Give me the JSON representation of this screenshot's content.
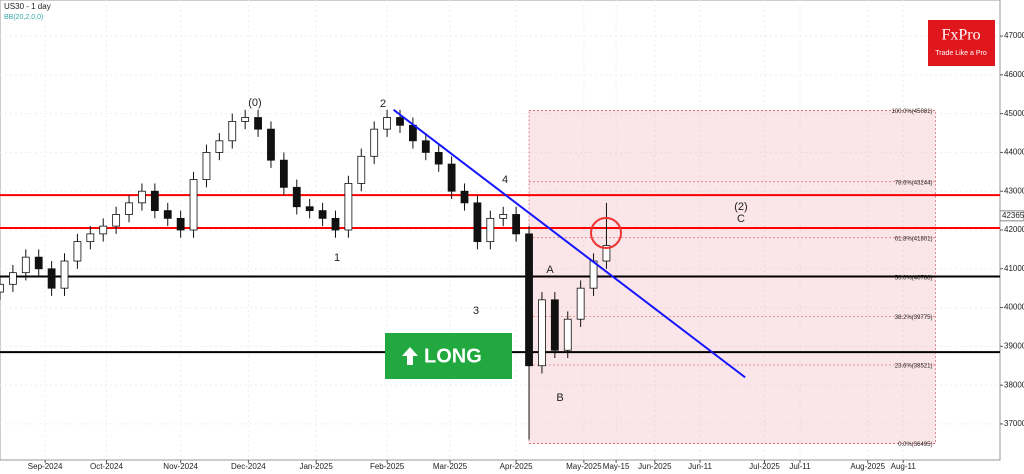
{
  "chart_data": {
    "type": "candlestick",
    "title": "US30 - 1 day",
    "subtitle": "BB(20,2.0,0)",
    "brand": "FxPro",
    "tagline": "Trade Like a Pro",
    "signal": "LONG",
    "xlim": [
      0,
      310
    ],
    "ylim": [
      36070,
      47930
    ],
    "yticks": [
      37000,
      38000,
      39000,
      40000,
      41000,
      42000,
      43000,
      44000,
      45000,
      46000,
      47000
    ],
    "xticks": [
      {
        "value": 14,
        "label": "Sep-2024"
      },
      {
        "value": 33,
        "label": "Oct-2024"
      },
      {
        "value": 56,
        "label": "Nov-2024"
      },
      {
        "value": 77,
        "label": "Dec-2024"
      },
      {
        "value": 98,
        "label": "Jan-2025"
      },
      {
        "value": 120,
        "label": "Feb-2025"
      },
      {
        "value": 139.5,
        "label": "Mar-2025"
      },
      {
        "value": 160,
        "label": "Apr-2025"
      },
      {
        "value": 181,
        "label": "May-2025"
      },
      {
        "value": 191,
        "label": "May-15"
      },
      {
        "value": 203,
        "label": "Jun-2025"
      },
      {
        "value": 217,
        "label": "Jun-11"
      },
      {
        "value": 237,
        "label": "Jul-2025"
      },
      {
        "value": 248,
        "label": "Jul-11"
      },
      {
        "value": 269,
        "label": "Aug-2025"
      },
      {
        "value": 280,
        "label": "Aug-11"
      }
    ],
    "last_price": 42365,
    "x": [
      0,
      4,
      8,
      12,
      16,
      20,
      24,
      28,
      32,
      36,
      40,
      44,
      48,
      52,
      56,
      60,
      64,
      68,
      72,
      76,
      80,
      84,
      88,
      92,
      96,
      100,
      104,
      108,
      112,
      116,
      120,
      124,
      128,
      132,
      136,
      140,
      144,
      148,
      152,
      156,
      160,
      164,
      168,
      172,
      176,
      180,
      184,
      188
    ],
    "open": [
      40400,
      40600,
      40900,
      41300,
      41000,
      40500,
      41200,
      41700,
      41900,
      42100,
      42400,
      42700,
      43000,
      42500,
      42300,
      42000,
      43300,
      44000,
      44300,
      44800,
      44900,
      44600,
      43800,
      43100,
      42600,
      42500,
      42300,
      42000,
      43200,
      43900,
      44600,
      44900,
      44700,
      44300,
      44000,
      43700,
      43000,
      42700,
      41700,
      42300,
      42400,
      41900,
      38500,
      40200,
      38900,
      39700,
      40500,
      41200
    ],
    "high": [
      40800,
      41100,
      41500,
      41500,
      41200,
      41400,
      41900,
      42100,
      42300,
      42600,
      42900,
      43200,
      43200,
      42700,
      42500,
      43500,
      44200,
      44500,
      45000,
      45100,
      45100,
      44800,
      44000,
      43300,
      42800,
      42700,
      42500,
      43400,
      44100,
      44800,
      45100,
      45100,
      44900,
      44500,
      44200,
      43900,
      43200,
      42900,
      42500,
      42600,
      42600,
      42100,
      40400,
      40400,
      39900,
      40700,
      41400,
      42700
    ],
    "low": [
      40200,
      40400,
      40700,
      40800,
      40300,
      40300,
      41000,
      41500,
      41700,
      41900,
      42200,
      42500,
      42300,
      42100,
      41800,
      41800,
      43100,
      43800,
      44100,
      44600,
      44400,
      43600,
      42900,
      42400,
      42300,
      42100,
      41800,
      41800,
      43000,
      43700,
      44400,
      44500,
      44100,
      43800,
      43500,
      42800,
      42500,
      41500,
      41500,
      42100,
      41700,
      36600,
      38300,
      38700,
      38700,
      39500,
      40300,
      41000
    ],
    "close": [
      40600,
      40900,
      41300,
      41000,
      40500,
      41200,
      41700,
      41900,
      42100,
      42400,
      42700,
      43000,
      42500,
      42300,
      42000,
      43300,
      44000,
      44300,
      44800,
      44900,
      44600,
      43800,
      43100,
      42600,
      42500,
      42300,
      42000,
      43200,
      43900,
      44600,
      44900,
      44700,
      44300,
      44000,
      43700,
      43000,
      42700,
      41700,
      42300,
      42400,
      41900,
      38500,
      40200,
      38900,
      39700,
      40500,
      41200,
      41600
    ],
    "levels": [
      {
        "value": 42900,
        "color": "#ff0000"
      },
      {
        "value": 42050,
        "color": "#ff0000"
      },
      {
        "value": 40800,
        "color": "#000000"
      },
      {
        "value": 38850,
        "color": "#000000"
      }
    ],
    "trendline": {
      "x": [
        122,
        231
      ],
      "values": [
        45100,
        38200
      ],
      "color": "#1414ff"
    },
    "fib_x": [
      164,
      290
    ],
    "fib_levels": [
      {
        "value": 45081,
        "label": "100.0%(45081)"
      },
      {
        "value": 43244,
        "label": "78.6%(43244)"
      },
      {
        "value": 41801,
        "label": "61.8%(41801)"
      },
      {
        "value": 40788,
        "label": "50.0%(40788)"
      },
      {
        "value": 39775,
        "label": "38.2%(39775)"
      },
      {
        "value": 38521,
        "label": "23.6%(38521)"
      },
      {
        "value": 36495,
        "label": "0.0%(36495)"
      }
    ],
    "annotations": [
      "(0)",
      "2",
      "4",
      "(2)",
      "C",
      "1",
      "3",
      "A",
      "B"
    ]
  }
}
